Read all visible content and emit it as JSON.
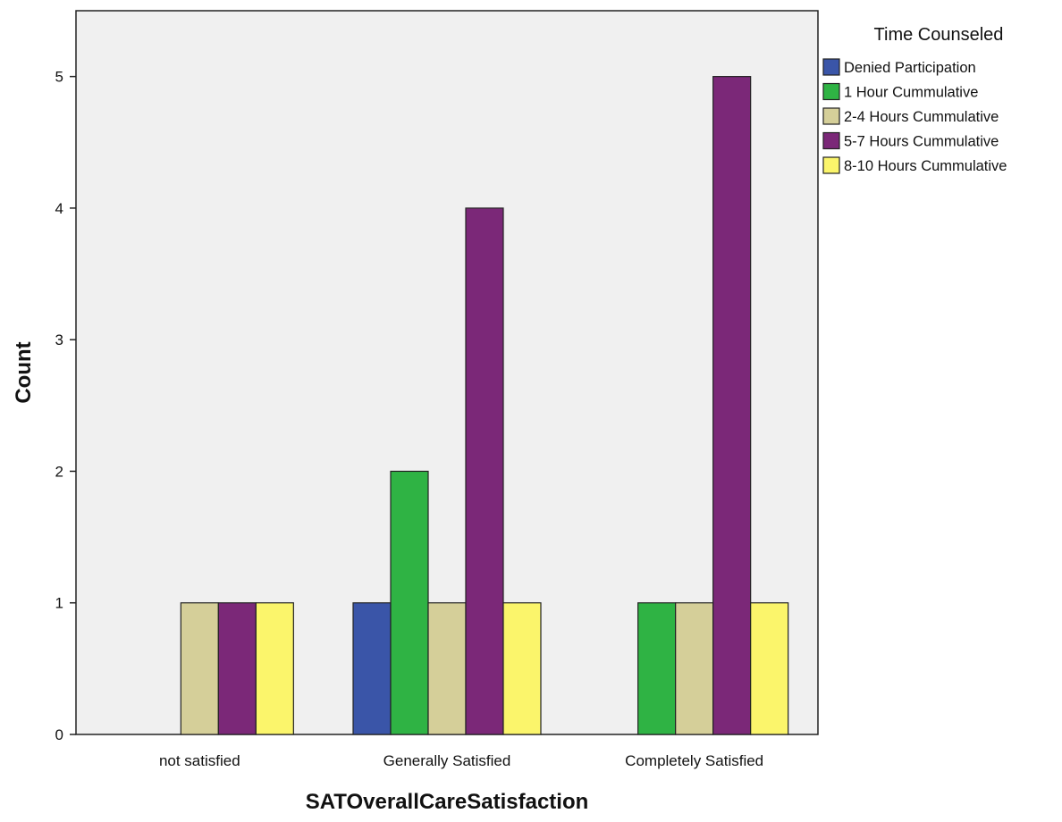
{
  "chart_data": {
    "type": "bar",
    "title": "",
    "xlabel": "SATOverallCareSatisfaction",
    "ylabel": "Count",
    "ylim": [
      0,
      5.5
    ],
    "yticks": [
      0,
      1,
      2,
      3,
      4,
      5
    ],
    "grid": false,
    "legend_title": "Time Counseled",
    "legend_placement": "top-right, outside plot",
    "categories": [
      "not satisfied",
      "Generally Satisfied",
      "Completely Satisfied"
    ],
    "series": [
      {
        "name": "Denied Participation",
        "color": "#3a55a8",
        "values": [
          0,
          1,
          0
        ]
      },
      {
        "name": "1 Hour Cummulative",
        "color": "#2fb344",
        "values": [
          0,
          2,
          1
        ]
      },
      {
        "name": "2-4 Hours Cummulative",
        "color": "#d5cf99",
        "values": [
          1,
          1,
          1
        ]
      },
      {
        "name": "5-7 Hours Cummulative",
        "color": "#7b2878",
        "values": [
          1,
          4,
          5
        ]
      },
      {
        "name": "8-10 Hours Cummulative",
        "color": "#fbf56b",
        "values": [
          1,
          1,
          1
        ]
      }
    ],
    "plot_background": "#f0f0f0"
  }
}
